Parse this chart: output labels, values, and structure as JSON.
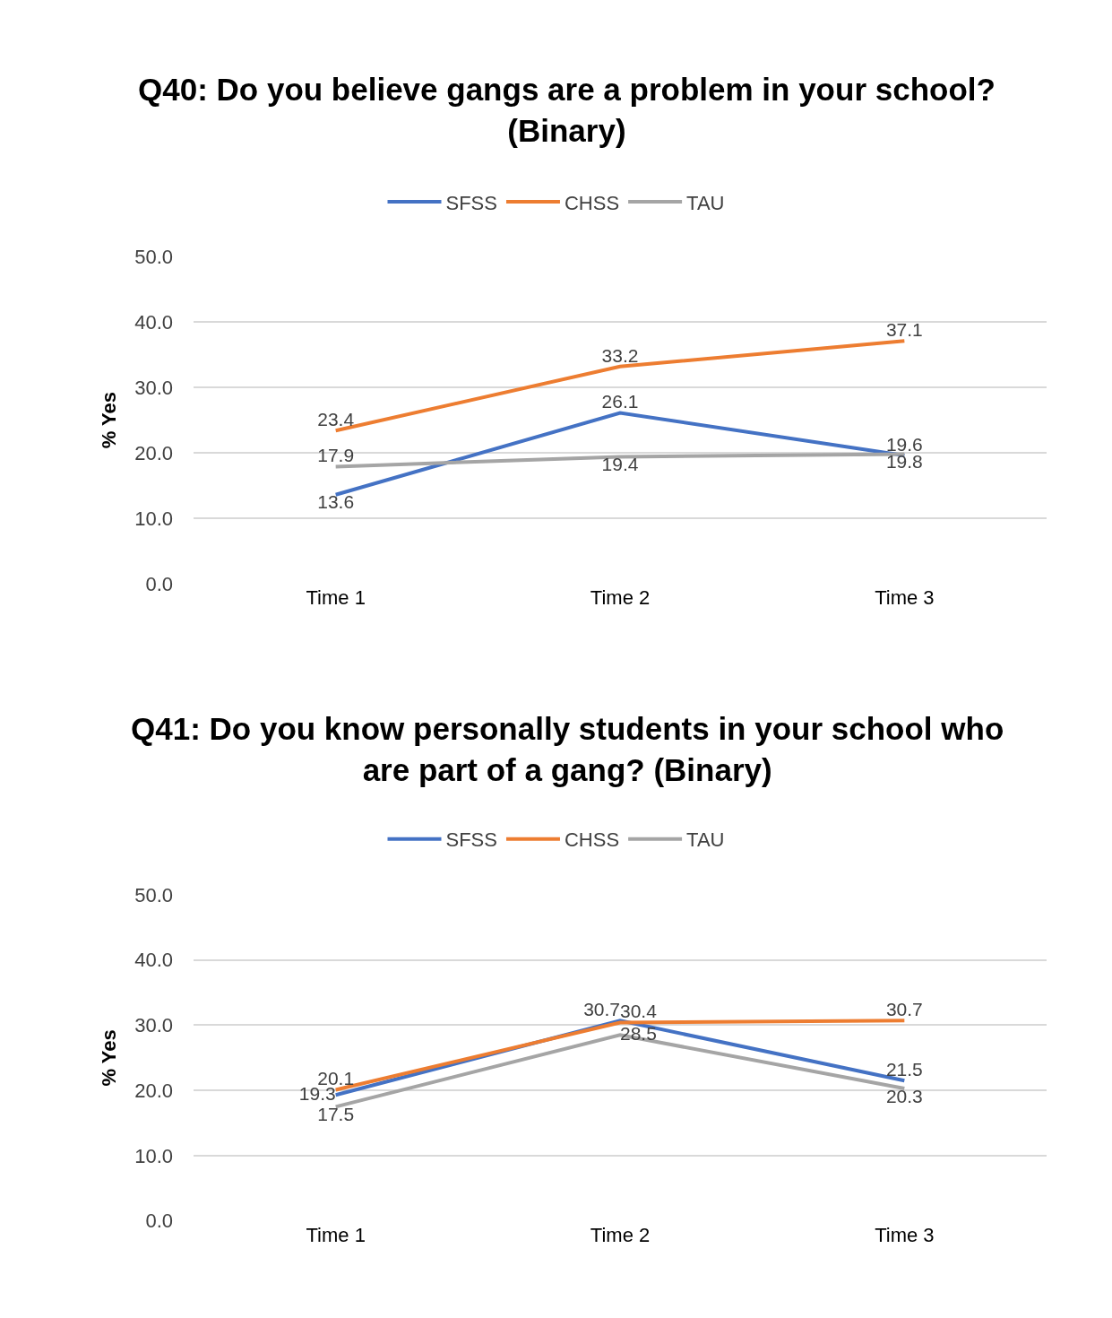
{
  "chart_data": [
    {
      "type": "line",
      "title": "Q40: Do you believe gangs are a problem in your school? (Binary)",
      "ylabel": "% Yes",
      "categories": [
        "Time 1",
        "Time 2",
        "Time 3"
      ],
      "series": [
        {
          "name": "SFSS",
          "color": "#4472c4",
          "values": [
            13.6,
            26.1,
            19.6
          ]
        },
        {
          "name": "CHSS",
          "color": "#ed7d31",
          "values": [
            23.4,
            33.2,
            37.1
          ]
        },
        {
          "name": "TAU",
          "color": "#a5a5a5",
          "values": [
            17.9,
            19.4,
            19.8
          ]
        }
      ],
      "ylim": [
        0,
        50
      ],
      "yticks": [
        {
          "value": 0,
          "label": "0.0"
        },
        {
          "value": 10,
          "label": "10.0"
        },
        {
          "value": 20,
          "label": "20.0"
        },
        {
          "value": 30,
          "label": "30.0"
        },
        {
          "value": 40,
          "label": "40.0"
        },
        {
          "value": 50,
          "label": "50.0"
        }
      ],
      "grid": "y",
      "legend": "top",
      "marker": "none",
      "line_style": "solid",
      "data_labels": true
    },
    {
      "type": "line",
      "title": "Q41: Do you know personally students in your school who are part of a gang? (Binary)",
      "ylabel": "% Yes",
      "categories": [
        "Time 1",
        "Time 2",
        "Time 3"
      ],
      "series": [
        {
          "name": "SFSS",
          "color": "#4472c4",
          "values": [
            19.3,
            30.7,
            21.5
          ]
        },
        {
          "name": "CHSS",
          "color": "#ed7d31",
          "values": [
            20.1,
            30.4,
            30.7
          ]
        },
        {
          "name": "TAU",
          "color": "#a5a5a5",
          "values": [
            17.5,
            28.5,
            20.3
          ]
        }
      ],
      "ylim": [
        0,
        50
      ],
      "yticks": [
        {
          "value": 0,
          "label": "0.0"
        },
        {
          "value": 10,
          "label": "10.0"
        },
        {
          "value": 20,
          "label": "20.0"
        },
        {
          "value": 30,
          "label": "30.0"
        },
        {
          "value": 40,
          "label": "40.0"
        },
        {
          "value": 50,
          "label": "50.0"
        }
      ],
      "grid": "y",
      "legend": "top",
      "marker": "none",
      "line_style": "solid",
      "data_labels": true
    }
  ]
}
